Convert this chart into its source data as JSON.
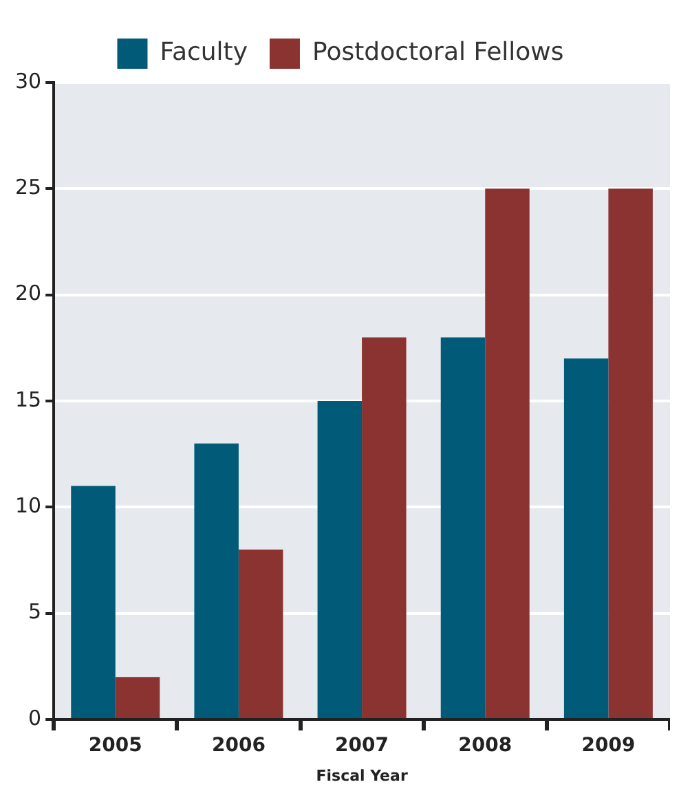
{
  "chart_data": {
    "type": "bar",
    "xlabel": "Fiscal Year",
    "categories": [
      "2005",
      "2006",
      "2007",
      "2008",
      "2009"
    ],
    "series": [
      {
        "name": "Faculty",
        "color": "#005a78",
        "values": [
          11,
          13,
          15,
          18,
          17
        ]
      },
      {
        "name": "Postdoctoral Fellows",
        "color": "#8b3330",
        "values": [
          2,
          8,
          18,
          25,
          25
        ]
      }
    ],
    "ylim": [
      0,
      30
    ],
    "yticks": [
      0,
      5,
      10,
      15,
      20,
      25,
      30
    ],
    "grid": "y",
    "legend": "top"
  }
}
